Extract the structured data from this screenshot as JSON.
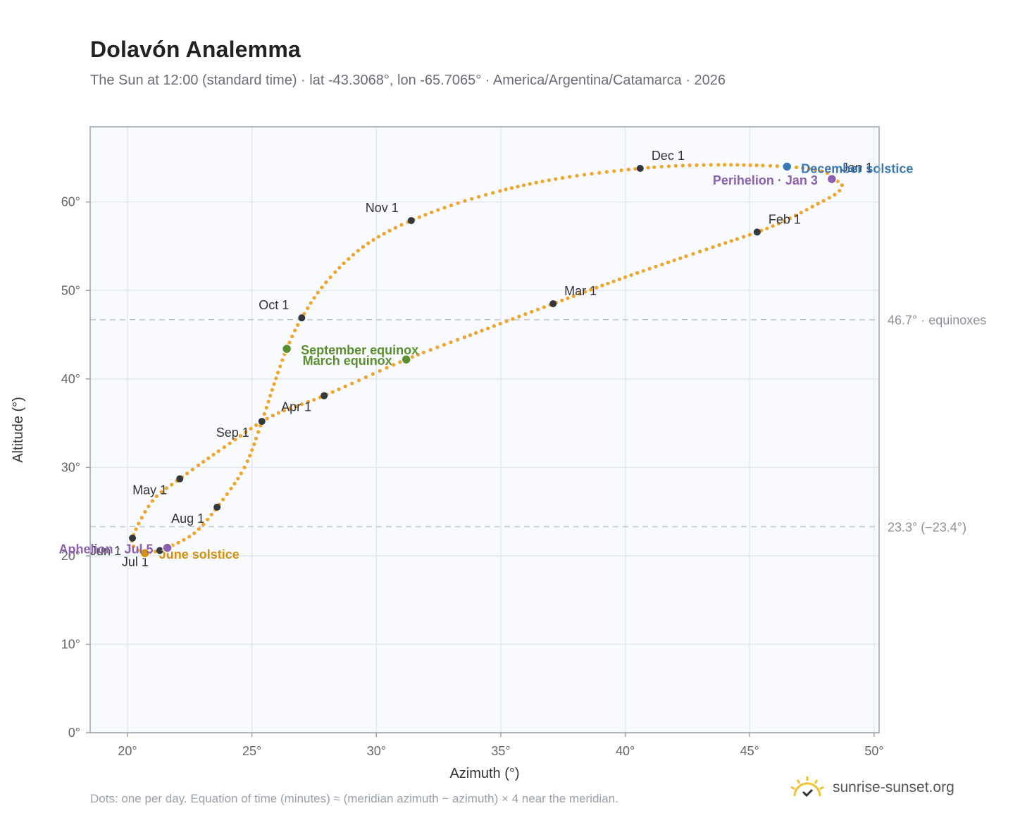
{
  "header": {
    "title": "Dolavón Analemma",
    "subtitle": "The Sun at 12:00 (standard time) · lat -43.3068°, lon -65.7065° · America/Argentina/Catamarca · 2026"
  },
  "footer": {
    "note": "Dots: one per day. Equation of time (minutes) ≈ (meridian azimuth − azimuth) × 4 near the meridian.",
    "brand": "sunrise-sunset.org"
  },
  "colors": {
    "path": "#f2a428",
    "month_dot": "#333740",
    "equinox": "#5a8f2e",
    "june_solstice": "#d4900f",
    "december_solstice": "#3a78b8",
    "apsis": "#8c5fb0",
    "plot_bg": "#f8fafd",
    "grid": "#e3e8ef",
    "border": "#9aa3ae",
    "brand_icon": "#f2c12e"
  },
  "chart_data": {
    "type": "scatter",
    "xlabel": "Azimuth (°)",
    "ylabel": "Altitude (°)",
    "xlim": [
      18.5,
      50.2
    ],
    "ylim": [
      0,
      68.5
    ],
    "xticks": [
      20,
      25,
      30,
      35,
      40,
      45,
      50
    ],
    "xtick_labels": [
      "20°",
      "25°",
      "30°",
      "35°",
      "40°",
      "45°",
      "50°"
    ],
    "yticks": [
      0,
      10,
      20,
      30,
      40,
      50,
      60
    ],
    "ytick_labels": [
      "0°",
      "10°",
      "20°",
      "30°",
      "40°",
      "50°",
      "60°"
    ],
    "grid": true,
    "reference_lines": [
      {
        "y": 46.7,
        "label": "46.7° · equinoxes"
      },
      {
        "y": 23.3,
        "label": "23.3° (−23.4°)"
      }
    ],
    "month_points": [
      {
        "label": "Jan 1",
        "x": 48.3,
        "y": 62.6
      },
      {
        "label": "Feb 1",
        "x": 45.3,
        "y": 56.6
      },
      {
        "label": "Mar 1",
        "x": 37.1,
        "y": 48.5
      },
      {
        "label": "Apr 1",
        "x": 27.9,
        "y": 38.1
      },
      {
        "label": "May 1",
        "x": 22.1,
        "y": 28.7
      },
      {
        "label": "Jun 1",
        "x": 20.2,
        "y": 22.0
      },
      {
        "label": "Jul 1",
        "x": 21.3,
        "y": 20.6
      },
      {
        "label": "Aug 1",
        "x": 23.6,
        "y": 25.5
      },
      {
        "label": "Sep 1",
        "x": 25.4,
        "y": 35.2
      },
      {
        "label": "Oct 1",
        "x": 27.0,
        "y": 46.9
      },
      {
        "label": "Nov 1",
        "x": 31.4,
        "y": 57.9
      },
      {
        "label": "Dec 1",
        "x": 40.6,
        "y": 63.8
      }
    ],
    "events": [
      {
        "label": "March equinox",
        "x": 31.2,
        "y": 42.2,
        "kind": "equinox"
      },
      {
        "label": "September equinox",
        "x": 26.4,
        "y": 43.4,
        "kind": "equinox"
      },
      {
        "label": "June solstice",
        "x": 20.7,
        "y": 20.3,
        "kind": "june_solstice"
      },
      {
        "label": "December solstice",
        "x": 46.5,
        "y": 64.0,
        "kind": "december_solstice"
      },
      {
        "label": "Perihelion · Jan 3",
        "x": 48.3,
        "y": 62.6,
        "kind": "apsis"
      },
      {
        "label": "Aphelion · Jul 5",
        "x": 21.6,
        "y": 20.9,
        "kind": "apsis"
      }
    ],
    "daily_path": [
      [
        48.3,
        62.6
      ],
      [
        48.7,
        62.0
      ],
      [
        48.5,
        61.0
      ],
      [
        47.6,
        59.6
      ],
      [
        46.5,
        58.0
      ],
      [
        45.3,
        56.6
      ],
      [
        43.0,
        54.4
      ],
      [
        40.0,
        51.5
      ],
      [
        37.1,
        48.5
      ],
      [
        34.0,
        45.2
      ],
      [
        31.2,
        42.2
      ],
      [
        27.9,
        38.1
      ],
      [
        25.8,
        35.8
      ],
      [
        24.0,
        32.5
      ],
      [
        22.1,
        28.7
      ],
      [
        21.0,
        26.2
      ],
      [
        20.2,
        22.0
      ],
      [
        20.4,
        20.7
      ],
      [
        20.7,
        20.3
      ],
      [
        21.3,
        20.6
      ],
      [
        21.6,
        20.9
      ],
      [
        22.7,
        22.6
      ],
      [
        23.6,
        25.5
      ],
      [
        24.7,
        30.0
      ],
      [
        25.4,
        35.2
      ],
      [
        25.9,
        39.5
      ],
      [
        26.4,
        43.4
      ],
      [
        27.0,
        46.9
      ],
      [
        28.0,
        51.0
      ],
      [
        29.5,
        55.0
      ],
      [
        31.4,
        57.9
      ],
      [
        34.0,
        60.5
      ],
      [
        37.0,
        62.5
      ],
      [
        40.6,
        63.8
      ],
      [
        43.5,
        64.2
      ],
      [
        46.5,
        64.0
      ],
      [
        48.0,
        63.4
      ],
      [
        48.3,
        62.6
      ]
    ]
  }
}
